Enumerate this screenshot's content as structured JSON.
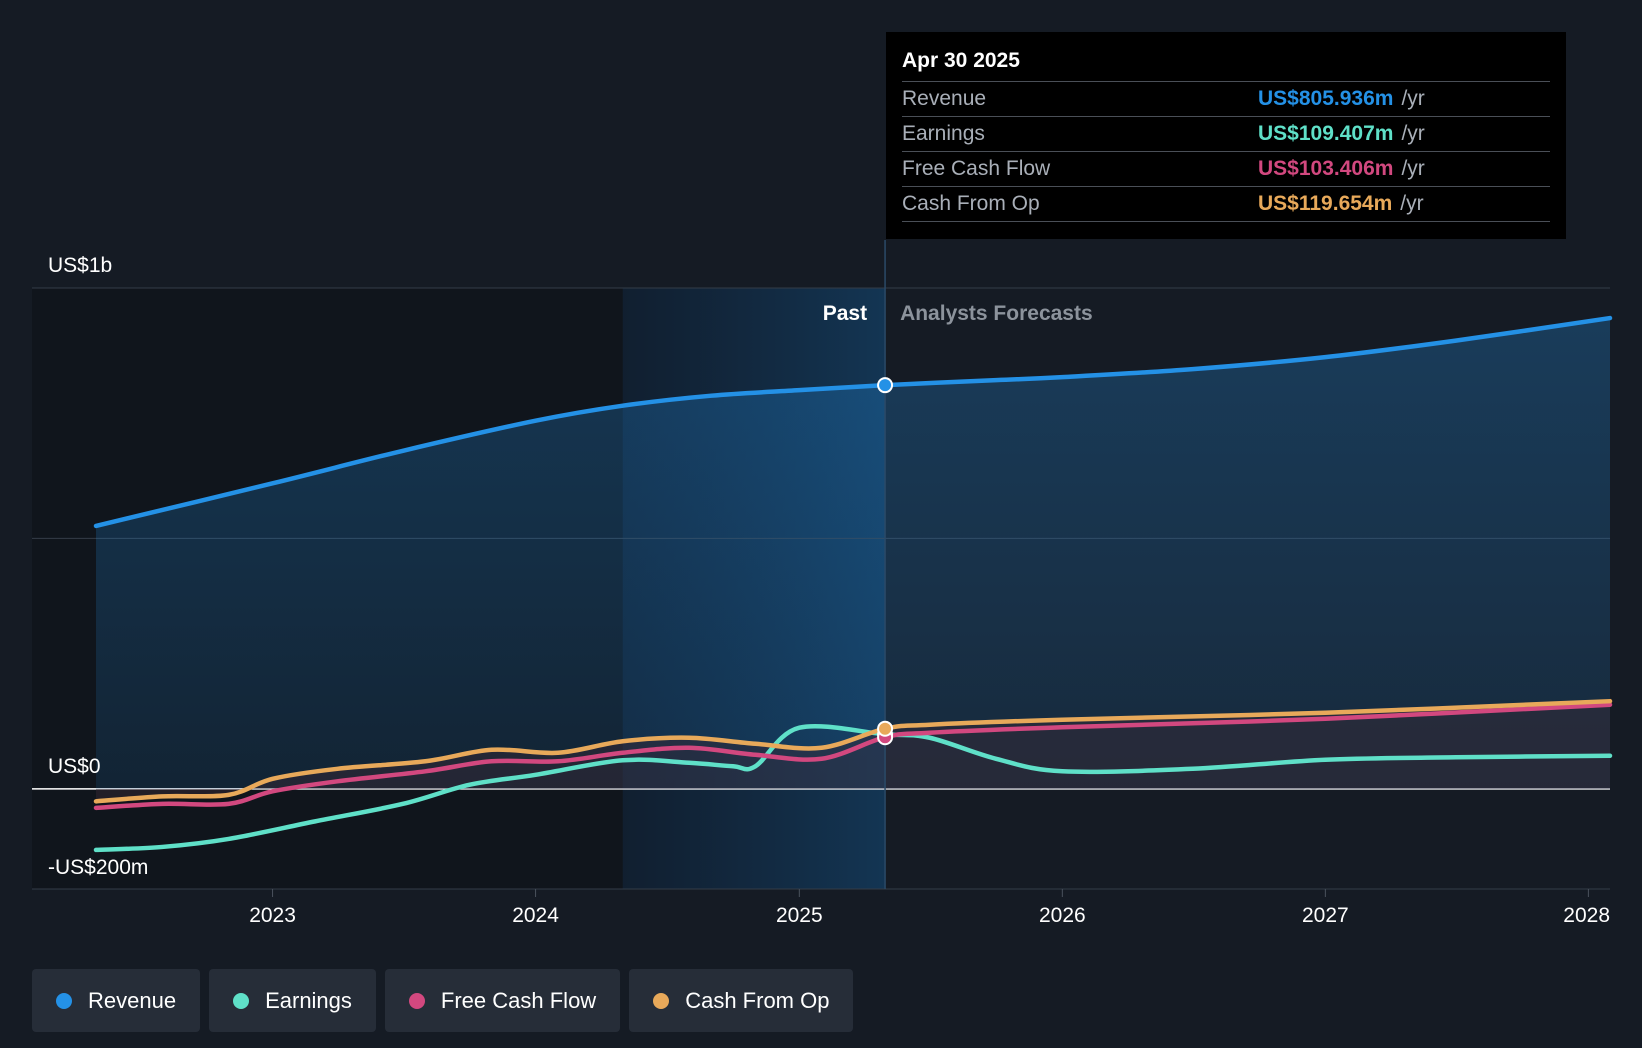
{
  "chart_data": {
    "type": "area",
    "x_range": [
      "2022-05-01",
      "2028-01-31"
    ],
    "y_range_millions": [
      -200,
      1000
    ],
    "y_ticks": [
      {
        "value": 1000,
        "label": "US$1b"
      },
      {
        "value": 0,
        "label": "US$0"
      },
      {
        "value": -200,
        "label": "-US$200m"
      }
    ],
    "x_ticks": [
      {
        "date": "2023-01-01",
        "label": "2023"
      },
      {
        "date": "2024-01-01",
        "label": "2024"
      },
      {
        "date": "2025-01-01",
        "label": "2025"
      },
      {
        "date": "2026-01-01",
        "label": "2026"
      },
      {
        "date": "2027-01-01",
        "label": "2027"
      },
      {
        "date": "2028-01-01",
        "label": "2028"
      }
    ],
    "past_region_start": "2024-05-01",
    "divider_date": "2025-04-30",
    "past_label": "Past",
    "forecast_label": "Analysts Forecasts",
    "series": [
      {
        "name": "Revenue",
        "color": "#2491e6",
        "fill": true,
        "points": [
          [
            "2022-05-01",
            525
          ],
          [
            "2023-01-01",
            610
          ],
          [
            "2023-07-01",
            675
          ],
          [
            "2024-01-01",
            735
          ],
          [
            "2024-05-01",
            765
          ],
          [
            "2024-09-01",
            785
          ],
          [
            "2025-01-01",
            796
          ],
          [
            "2025-04-30",
            806
          ],
          [
            "2025-10-01",
            816
          ],
          [
            "2026-01-01",
            822
          ],
          [
            "2026-07-01",
            838
          ],
          [
            "2027-01-01",
            862
          ],
          [
            "2027-07-01",
            895
          ],
          [
            "2028-01-31",
            940
          ]
        ]
      },
      {
        "name": "Earnings",
        "color": "#5fe0c8",
        "fill": false,
        "points": [
          [
            "2022-05-01",
            -122
          ],
          [
            "2022-08-01",
            -116
          ],
          [
            "2022-11-01",
            -100
          ],
          [
            "2023-03-01",
            -65
          ],
          [
            "2023-07-01",
            -30
          ],
          [
            "2023-10-01",
            8
          ],
          [
            "2024-01-01",
            28
          ],
          [
            "2024-05-01",
            57
          ],
          [
            "2024-08-01",
            52
          ],
          [
            "2024-10-01",
            45
          ],
          [
            "2024-11-01",
            45
          ],
          [
            "2025-01-01",
            122
          ],
          [
            "2025-04-30",
            109
          ],
          [
            "2025-07-01",
            102
          ],
          [
            "2025-10-01",
            60
          ],
          [
            "2026-01-01",
            35
          ],
          [
            "2026-07-01",
            40
          ],
          [
            "2027-01-01",
            58
          ],
          [
            "2027-07-01",
            63
          ],
          [
            "2028-01-31",
            66
          ]
        ]
      },
      {
        "name": "Free Cash Flow",
        "color": "#d2487f",
        "fill": false,
        "points": [
          [
            "2022-05-01",
            -38
          ],
          [
            "2022-08-01",
            -30
          ],
          [
            "2022-11-01",
            -30
          ],
          [
            "2023-01-01",
            -5
          ],
          [
            "2023-04-01",
            15
          ],
          [
            "2023-08-01",
            35
          ],
          [
            "2023-11-01",
            55
          ],
          [
            "2024-02-01",
            55
          ],
          [
            "2024-05-01",
            72
          ],
          [
            "2024-08-01",
            82
          ],
          [
            "2024-11-01",
            68
          ],
          [
            "2025-02-01",
            60
          ],
          [
            "2025-04-30",
            103
          ],
          [
            "2025-07-01",
            112
          ],
          [
            "2026-01-01",
            123
          ],
          [
            "2027-01-01",
            140
          ],
          [
            "2028-01-31",
            168
          ]
        ]
      },
      {
        "name": "Cash From Op",
        "color": "#e8a95a",
        "fill": false,
        "points": [
          [
            "2022-05-01",
            -25
          ],
          [
            "2022-08-01",
            -15
          ],
          [
            "2022-11-01",
            -12
          ],
          [
            "2023-01-01",
            20
          ],
          [
            "2023-04-01",
            40
          ],
          [
            "2023-08-01",
            55
          ],
          [
            "2023-11-01",
            78
          ],
          [
            "2024-02-01",
            72
          ],
          [
            "2024-05-01",
            95
          ],
          [
            "2024-08-01",
            102
          ],
          [
            "2024-11-01",
            90
          ],
          [
            "2025-02-01",
            82
          ],
          [
            "2025-04-30",
            120
          ],
          [
            "2025-07-01",
            128
          ],
          [
            "2026-01-01",
            138
          ],
          [
            "2027-01-01",
            152
          ],
          [
            "2028-01-31",
            175
          ]
        ]
      }
    ]
  },
  "tooltip": {
    "date": "Apr 30 2025",
    "rows": [
      {
        "label": "Revenue",
        "value": "US$805.936m",
        "unit": "/yr",
        "color": "#2491e6"
      },
      {
        "label": "Earnings",
        "value": "US$109.407m",
        "unit": "/yr",
        "color": "#5fe0c8"
      },
      {
        "label": "Free Cash Flow",
        "value": "US$103.406m",
        "unit": "/yr",
        "color": "#d2487f"
      },
      {
        "label": "Cash From Op",
        "value": "US$119.654m",
        "unit": "/yr",
        "color": "#e8a95a"
      }
    ]
  },
  "legend": [
    {
      "label": "Revenue",
      "color": "#2491e6"
    },
    {
      "label": "Earnings",
      "color": "#5fe0c8"
    },
    {
      "label": "Free Cash Flow",
      "color": "#d2487f"
    },
    {
      "label": "Cash From Op",
      "color": "#e8a95a"
    }
  ]
}
